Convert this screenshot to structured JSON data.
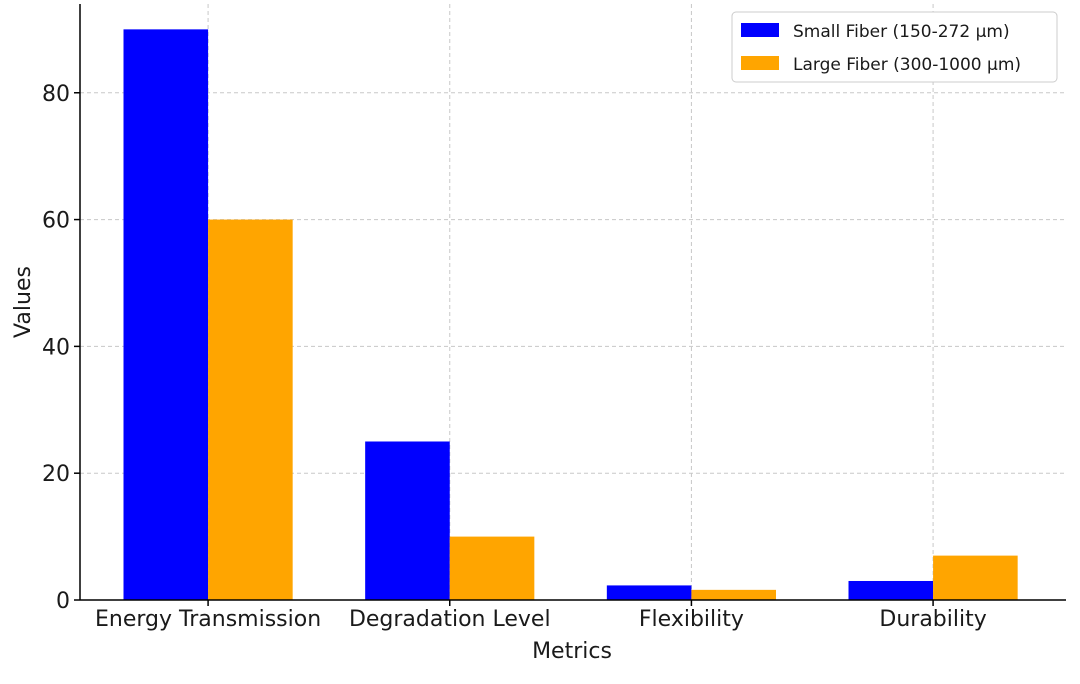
{
  "chart_data": {
    "type": "bar",
    "title": "",
    "xlabel": "Metrics",
    "ylabel": "Values",
    "categories": [
      "Energy Transmission",
      "Degradation Level",
      "Flexibility",
      "Durability"
    ],
    "series": [
      {
        "name": "Small Fiber (150-272 µm)",
        "color": "#0000ff",
        "values": [
          90,
          25,
          2.3,
          3
        ]
      },
      {
        "name": "Large Fiber (300-1000 µm)",
        "color": "#ffa500",
        "values": [
          60,
          10,
          1.6,
          7
        ]
      }
    ],
    "ylim": [
      0,
      94
    ],
    "yticks": [
      0,
      20,
      40,
      60,
      80
    ],
    "grid": true,
    "legend": "top-right"
  }
}
